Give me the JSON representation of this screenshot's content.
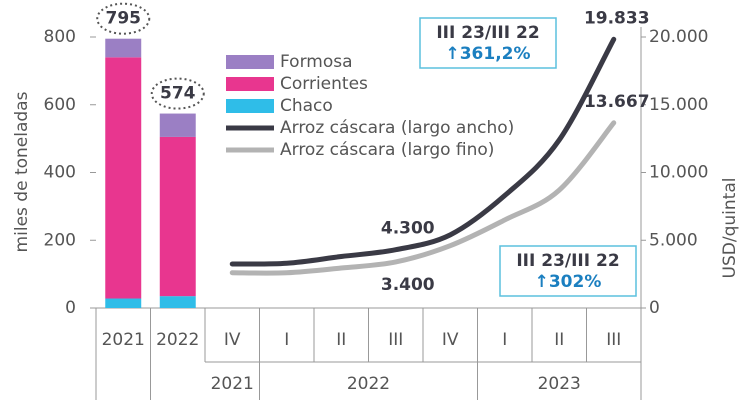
{
  "chart_data": {
    "type": "bar",
    "categories": [
      "2021",
      "2022",
      "IV",
      "I",
      "II",
      "III",
      "IV",
      "I",
      "II",
      "III"
    ],
    "groups": [
      {
        "label": "2021",
        "span": [
          2,
          2
        ]
      },
      {
        "label": "2022",
        "span": [
          3,
          6
        ]
      },
      {
        "label": "2023",
        "span": [
          7,
          9
        ]
      }
    ],
    "ylabel": "miles de toneladas",
    "y2label": "USD/quintal",
    "ylim": [
      0,
      800
    ],
    "yticks": [
      0,
      200,
      400,
      600,
      800
    ],
    "y2lim": [
      0,
      20000
    ],
    "y2ticks": [
      0,
      {
        "value": 5000,
        "label": "5.000"
      },
      {
        "value": 10000,
        "label": "10.000"
      },
      {
        "value": 15000,
        "label": "15.000"
      },
      {
        "value": 20000,
        "label": "20.000"
      }
    ],
    "series": [
      {
        "name": "Chaco",
        "type": "bar",
        "color": "#2fbde8",
        "values": [
          28,
          35,
          null,
          null,
          null,
          null,
          null,
          null,
          null,
          null
        ]
      },
      {
        "name": "Corrientes",
        "type": "bar",
        "color": "#e8368f",
        "values": [
          712,
          470,
          null,
          null,
          null,
          null,
          null,
          null,
          null,
          null
        ]
      },
      {
        "name": "Formosa",
        "type": "bar",
        "color": "#9b7fc4",
        "values": [
          55,
          69,
          null,
          null,
          null,
          null,
          null,
          null,
          null,
          null
        ]
      },
      {
        "name": "Arroz cáscara (largo ancho)",
        "type": "line",
        "axis": "y2",
        "color": "#3a3a45",
        "values": [
          null,
          null,
          3250,
          3300,
          3800,
          4300,
          5400,
          8300,
          12400,
          19833
        ],
        "value_labels": [
          null,
          null,
          null,
          null,
          null,
          "4.300",
          null,
          null,
          null,
          "19.833"
        ]
      },
      {
        "name": "Arroz cáscara (largo fino)",
        "type": "line",
        "axis": "y2",
        "color": "#b3b3b3",
        "values": [
          null,
          null,
          2600,
          2600,
          2950,
          3400,
          4600,
          6500,
          8700,
          13667
        ],
        "value_labels": [
          null,
          null,
          null,
          null,
          null,
          "3.400",
          null,
          null,
          null,
          "13.667"
        ]
      }
    ],
    "totals": [
      795,
      574
    ],
    "legend_order": [
      2,
      1,
      0,
      3,
      4
    ],
    "annotations": [
      {
        "title": "III 23/III 22",
        "text": "↑361,2%"
      },
      {
        "title": "III 23/III 22",
        "text": "↑302%"
      }
    ]
  }
}
